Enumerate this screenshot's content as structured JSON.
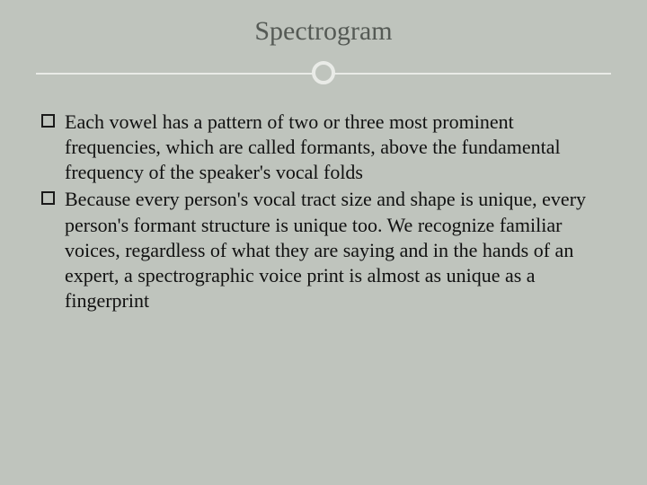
{
  "slide": {
    "title": "Spectrogram",
    "title_color": "#555a55",
    "title_fontsize": 30,
    "background_color": "#bfc4bd",
    "divider_color": "#e9ebe7",
    "body_fontsize": 22,
    "body_color": "#111111",
    "bullets": [
      {
        "text": "Each vowel has a pattern of two or three most prominent frequencies, which are called formants, above the fundamental frequency of the speaker's vocal folds"
      },
      {
        "text": "Because every person's vocal tract size and shape is unique, every person's formant structure is unique too. We recognize familiar voices, regardless of what they are saying and in the hands of an expert, a spectrographic voice print is almost as unique as a fingerprint"
      }
    ]
  }
}
